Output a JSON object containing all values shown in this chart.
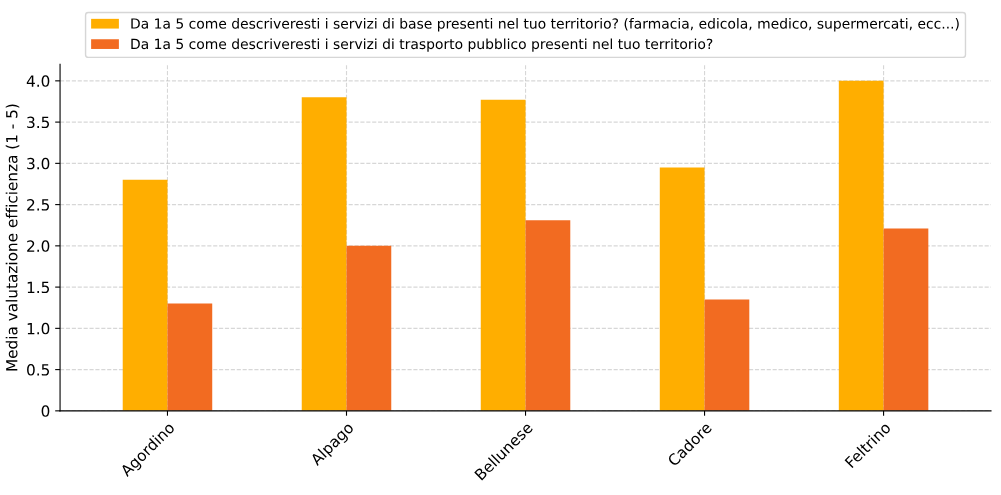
{
  "chart_data": {
    "type": "bar",
    "ylabel": "Media valutazione efficienza (1 - 5)",
    "categories": [
      "Agordino",
      "Alpago",
      "Bellunese",
      "Cadore",
      "Feltrino"
    ],
    "series": [
      {
        "name": "Da 1a 5 come descriveresti i servizi di base presenti nel tuo territorio? (farmacia, edicola, medico, supermercati, ecc...)",
        "color": "#ffae00",
        "values": [
          2.8,
          3.8,
          3.77,
          2.95,
          4.0
        ]
      },
      {
        "name": "Da 1a 5 come descriveresti i servizi di trasporto pubblico presenti nel tuo territorio?",
        "color": "#f26b21",
        "values": [
          1.3,
          2.0,
          2.31,
          1.35,
          2.21
        ]
      }
    ],
    "ylim": [
      0,
      4.2
    ],
    "yticks": [
      0,
      {
        "value": 0.5,
        "label": "0.5"
      },
      {
        "value": 1.0,
        "label": "1.0"
      },
      {
        "value": 1.5,
        "label": "1.5"
      },
      {
        "value": 2.0,
        "label": "2.0"
      },
      {
        "value": 2.5,
        "label": "2.5"
      },
      {
        "value": 3.0,
        "label": "3.0"
      },
      {
        "value": 3.5,
        "label": "3.5"
      },
      {
        "value": 4.0,
        "label": "4.0"
      }
    ],
    "grid": true,
    "legend": "top"
  }
}
